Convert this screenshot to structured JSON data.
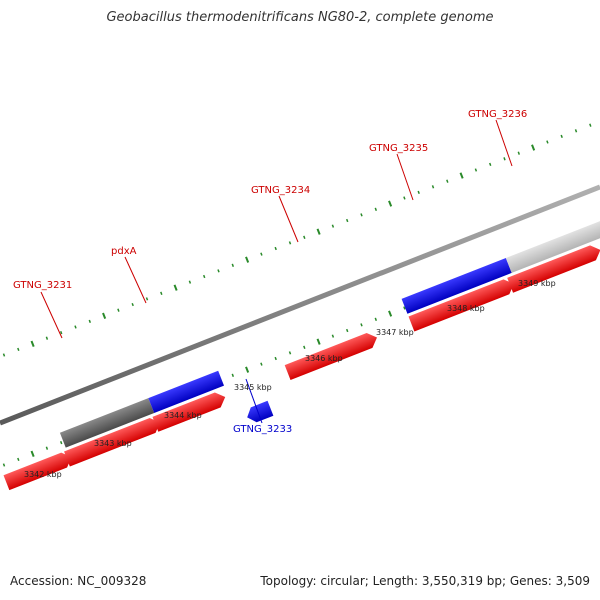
{
  "header": {
    "title": "Geobacillus thermodenitrificans NG80-2, complete genome"
  },
  "footer": {
    "accession": "Accession: NC_009328",
    "summary": "Topology: circular; Length: 3,550,319 bp; Genes: 3,509"
  },
  "colors": {
    "background": "#ffffff",
    "forward_gene": "#ff0000",
    "reverse_gene": "#0000ee",
    "neutral_gene_dark": "#666666",
    "neutral_gene_light": "#cccccc",
    "backbone": "#808080",
    "ticks": "#228b22",
    "forward_label": "#cc0000",
    "reverse_label": "#0000cc"
  },
  "labels": [
    {
      "id": "gtng-3231",
      "text": "GTNG_3231",
      "strand": "forward"
    },
    {
      "id": "pdxa",
      "text": "pdxA",
      "strand": "forward"
    },
    {
      "id": "gtng-3234",
      "text": "GTNG_3234",
      "strand": "forward"
    },
    {
      "id": "gtng-3235",
      "text": "GTNG_3235",
      "strand": "forward"
    },
    {
      "id": "gtng-3236",
      "text": "GTNG_3236",
      "strand": "forward"
    },
    {
      "id": "gtng-3233",
      "text": "GTNG_3233",
      "strand": "reverse"
    }
  ],
  "scale_labels": [
    "3342 kbp",
    "3343 kbp",
    "3344 kbp",
    "3345 kbp",
    "3346 kbp",
    "3347 kbp",
    "3348 kbp",
    "3349 kbp"
  ]
}
